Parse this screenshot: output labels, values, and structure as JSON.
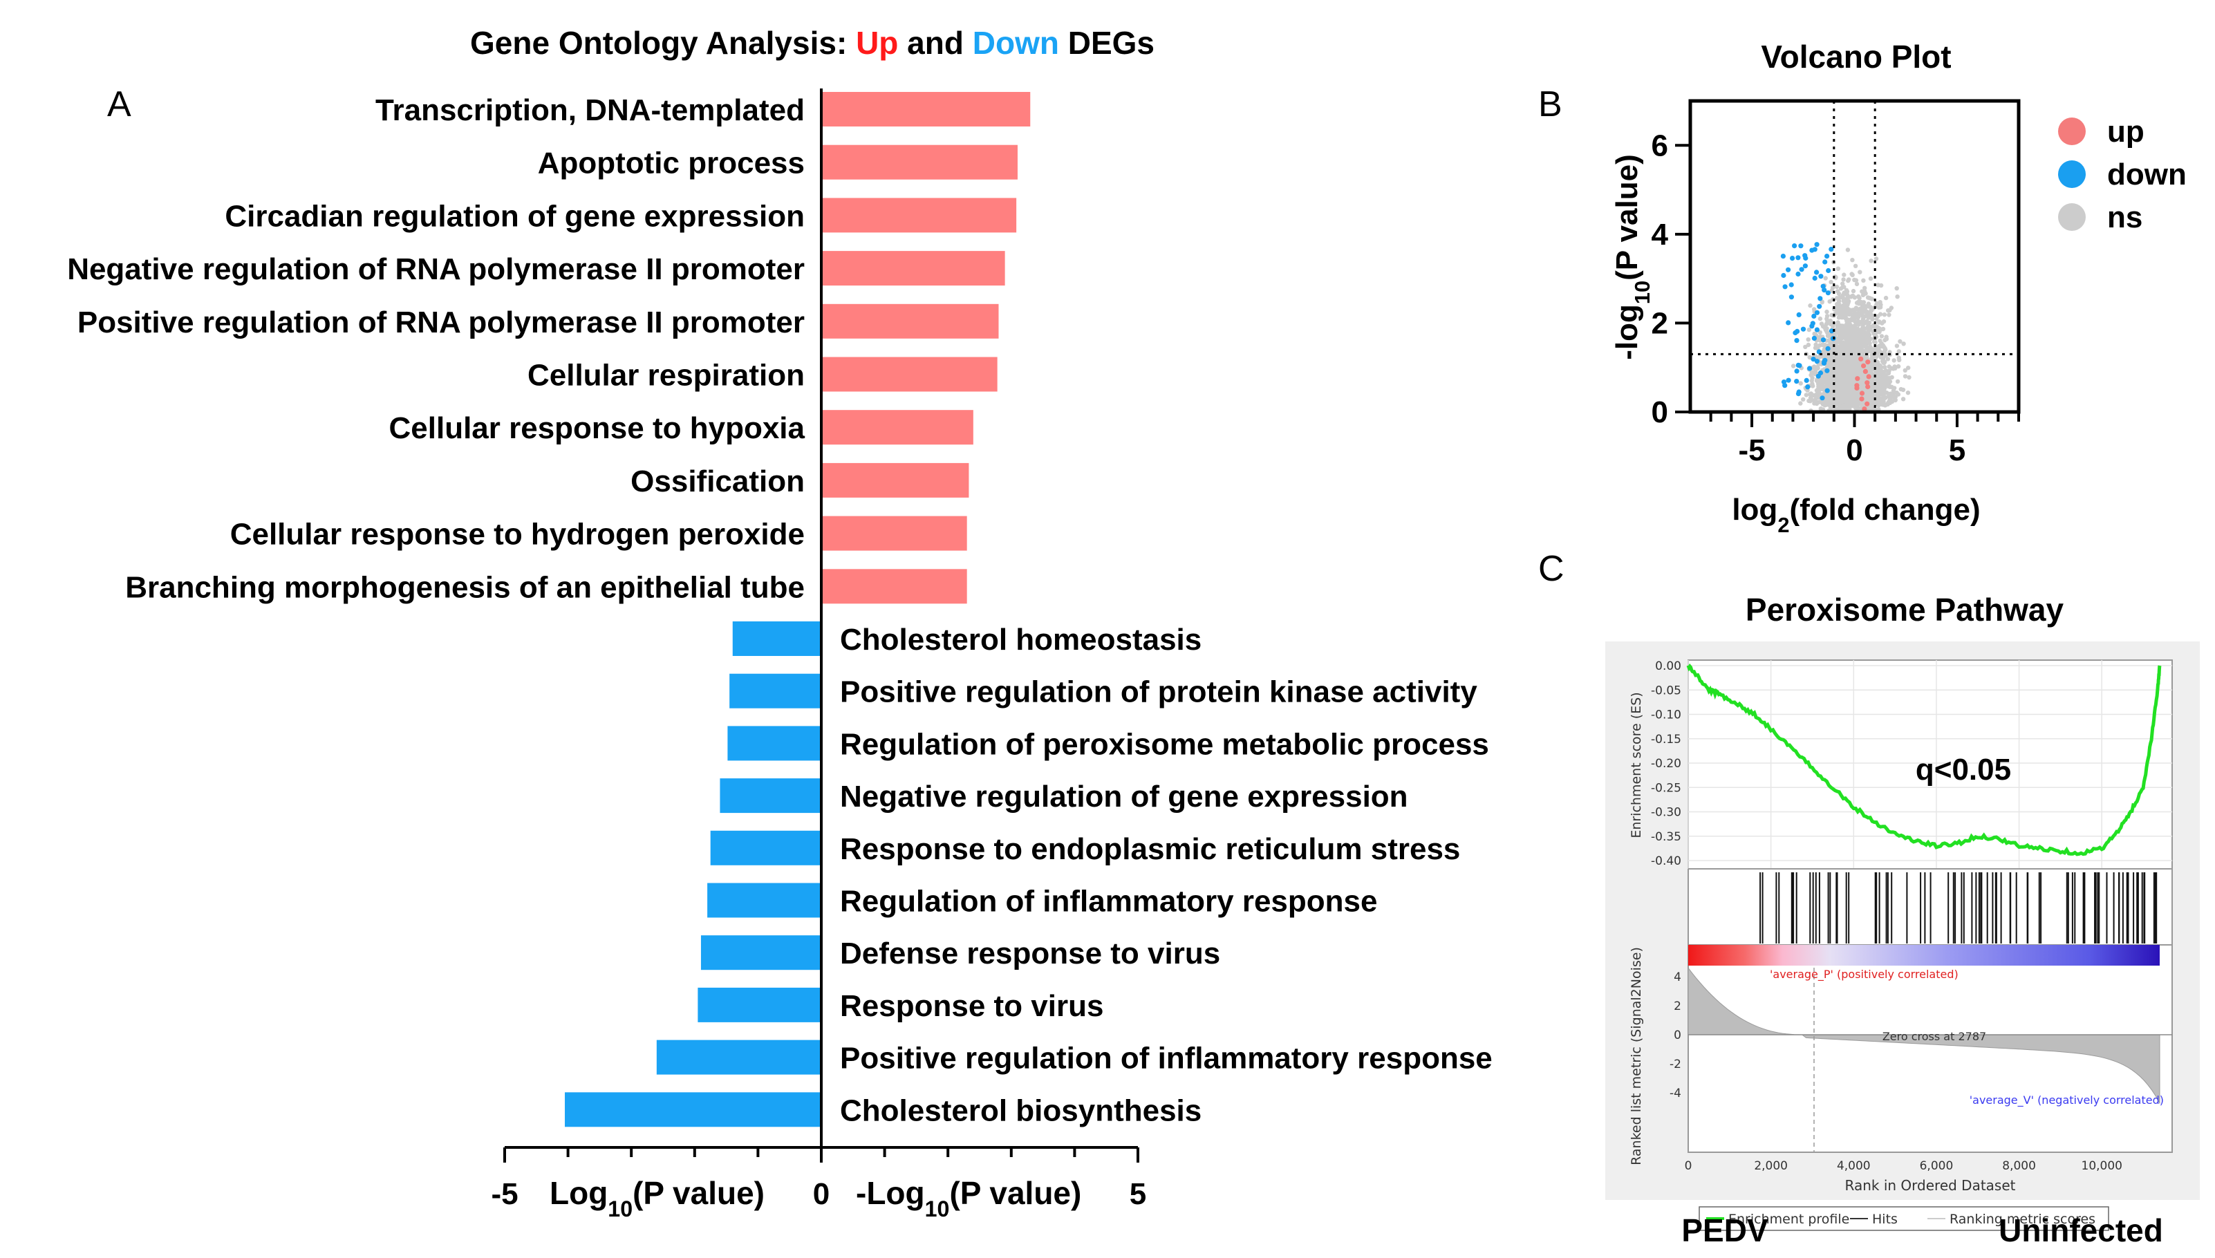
{
  "chart_data": [
    {
      "panel_label": "A",
      "type": "bar",
      "title_parts": [
        "Gene Ontology Analysis: ",
        "Up",
        " and ",
        "Down",
        " DEGs"
      ],
      "xlabel_left": "Log10(P value)",
      "xlabel_right": "-Log10(P value)",
      "xlim": [
        -5,
        5
      ],
      "xticks": [
        "-5",
        "0",
        "5"
      ],
      "series": [
        {
          "name": "Up",
          "color": "#ff8080",
          "categories": [
            "Transcription, DNA-templated",
            "Apoptotic process",
            "Circadian regulation of gene expression",
            "Negative regulation of RNA polymerase II promoter",
            "Positive regulation of RNA polymerase II promoter",
            "Cellular respiration",
            "Cellular response to hypoxia",
            "Ossification",
            "Cellular response to hydrogen peroxide",
            "Branching morphogenesis of an epithelial tube"
          ],
          "values": [
            3.3,
            3.1,
            3.08,
            2.9,
            2.8,
            2.78,
            2.4,
            2.33,
            2.3,
            2.3
          ]
        },
        {
          "name": "Down",
          "color": "#1aa3f5",
          "categories": [
            "Cholesterol homeostasis",
            "Positive regulation of protein kinase activity",
            "Regulation of peroxisome metabolic process",
            "Negative regulation of gene expression",
            "Response to endoplasmic reticulum stress",
            "Regulation of inflammatory response",
            "Defense response to virus",
            "Response to virus",
            "Positive regulation of inflammatory response",
            "Cholesterol biosynthesis"
          ],
          "values": [
            -1.4,
            -1.45,
            -1.48,
            -1.6,
            -1.75,
            -1.8,
            -1.9,
            -1.95,
            -2.6,
            -4.05
          ]
        }
      ]
    },
    {
      "panel_label": "B",
      "type": "scatter",
      "title": "Volcano Plot",
      "xlabel": "log2(fold change)",
      "ylabel": "-log10(P value)",
      "xlim": [
        -8,
        8
      ],
      "ylim": [
        0,
        7
      ],
      "xticks": [
        "-5",
        "0",
        "5"
      ],
      "yticks": [
        "0",
        "2",
        "4",
        "6"
      ],
      "thresholds": {
        "log2fc": [
          -1,
          1
        ],
        "neg_log10_p": 1.3
      },
      "legend": [
        {
          "label": "up",
          "color": "#f47c7c"
        },
        {
          "label": "down",
          "color": "#1a9ff0"
        },
        {
          "label": "ns",
          "color": "#cccccc"
        }
      ]
    },
    {
      "panel_label": "C",
      "type": "line",
      "title": "Peroxisome Pathway",
      "annotation": "q<0.05",
      "ylabel": "Enrichment score (ES)",
      "xlabel": "Rank in Ordered Dataset",
      "yticks": [
        "0.00",
        "-0.05",
        "-0.10",
        "-0.15",
        "-0.20",
        "-0.25",
        "-0.30",
        "-0.35",
        "-0.40"
      ],
      "xticks": [
        "0",
        "2,000",
        "4,000",
        "6,000",
        "8,000",
        "10,000"
      ],
      "metric_ylabel": "Ranked list metric (Signal2Noise)",
      "metric_yticks": [
        "4",
        "2",
        "0",
        "-2",
        "-4"
      ],
      "pos_label": "'average_P' (positively correlated)",
      "neg_label": "'average_V' (negatively correlated)",
      "zero_cross": "Zero cross at 2787",
      "legend": [
        "Enrichment profile",
        "Hits",
        "Ranking metric scores"
      ],
      "left_group": "PEDV",
      "right_group": "Uninfected",
      "es_curve": {
        "x": [
          0,
          200,
          500,
          800,
          1200,
          1600,
          2000,
          2500,
          3000,
          3500,
          4000,
          4500,
          5000,
          5500,
          6000,
          6500,
          7000,
          7500,
          8000,
          8500,
          9000,
          9500,
          10000,
          10400,
          10700,
          11000,
          11200,
          11350,
          11400
        ],
        "y": [
          0.0,
          -0.02,
          -0.05,
          -0.06,
          -0.08,
          -0.1,
          -0.13,
          -0.17,
          -0.21,
          -0.25,
          -0.29,
          -0.32,
          -0.345,
          -0.36,
          -0.37,
          -0.365,
          -0.35,
          -0.355,
          -0.37,
          -0.375,
          -0.38,
          -0.385,
          -0.375,
          -0.34,
          -0.3,
          -0.25,
          -0.15,
          -0.05,
          0.0
        ]
      }
    }
  ]
}
